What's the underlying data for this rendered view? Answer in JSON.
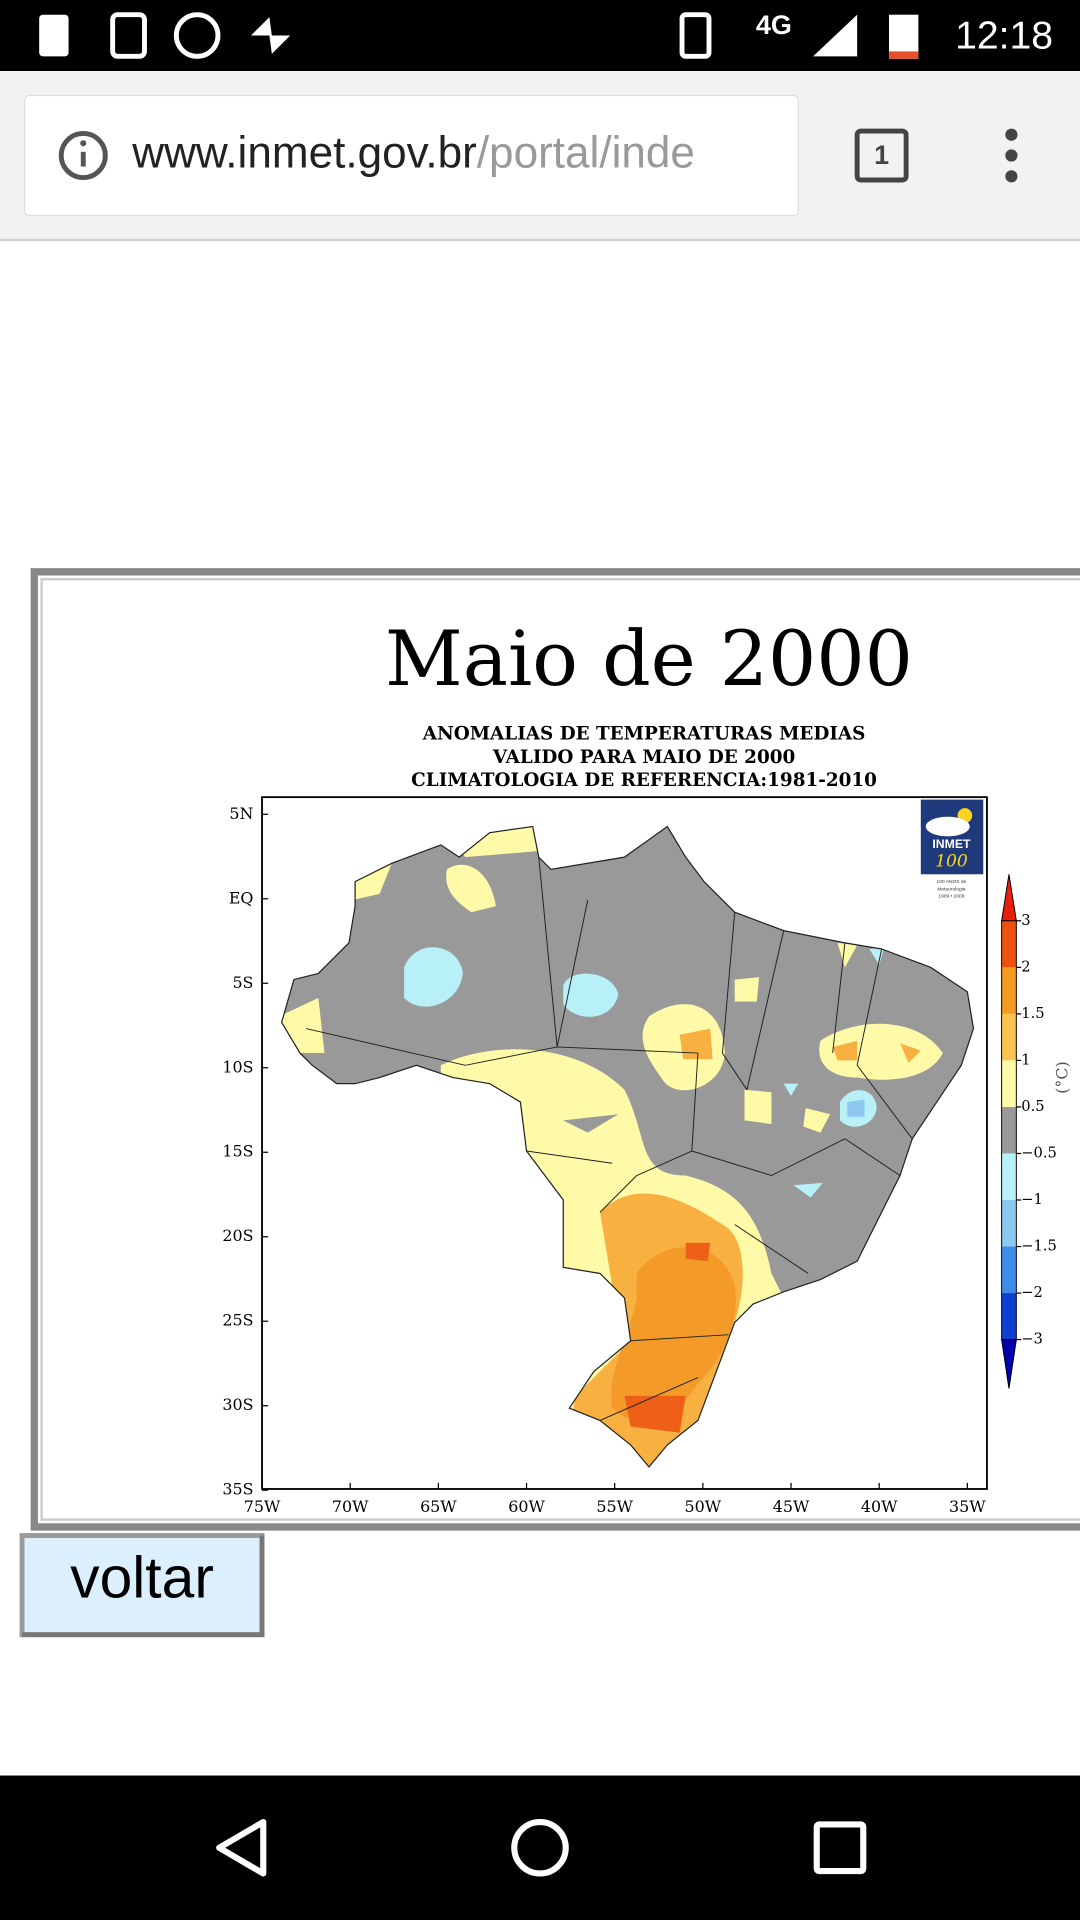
{
  "status_bar": {
    "network": "4G",
    "time": "12:18"
  },
  "browser": {
    "url_host": "www.inmet.gov.br",
    "url_path": "/portal/inde",
    "tab_count": "1"
  },
  "map": {
    "title": "Maio de 2000",
    "subtitle": [
      "ANOMALIAS DE TEMPERATURAS MEDIAS",
      "VALIDO PARA MAIO DE 2000",
      "CLIMATOLOGIA DE REFERENCIA:1981-2010"
    ],
    "lat_labels": [
      "5N",
      "EQ",
      "5S",
      "10S",
      "15S",
      "20S",
      "25S",
      "30S",
      "35S"
    ],
    "lon_labels": [
      "75W",
      "70W",
      "65W",
      "60W",
      "55W",
      "50W",
      "45W",
      "40W",
      "35W"
    ],
    "legend_labels": [
      "3",
      "2",
      "1.5",
      "1",
      "0.5",
      "−0.5",
      "−1",
      "−1.5",
      "−2",
      "−3"
    ],
    "legend_unit": "(°C)",
    "logo": {
      "name": "INMET",
      "number": "100",
      "caption": [
        "100 ANOS de",
        "Meteorologia",
        "1909 • 2009"
      ]
    }
  },
  "button": "voltar"
}
